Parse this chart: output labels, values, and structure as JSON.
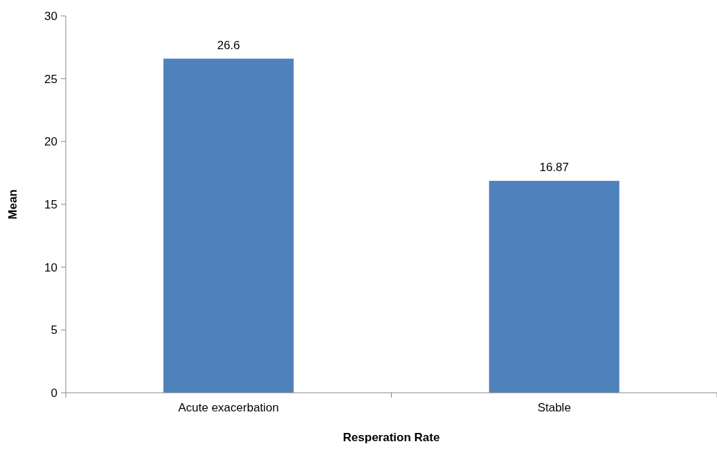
{
  "chart_data": {
    "type": "bar",
    "xlabel": "Resperation Rate",
    "ylabel": "Mean",
    "categories": [
      "Acute exacerbation",
      "Stable"
    ],
    "values": [
      26.6,
      16.87
    ],
    "color": "#4f81bd",
    "ylim": [
      0,
      30
    ],
    "yticks": [
      0,
      5,
      10,
      15,
      20,
      25,
      30
    ],
    "grid": false,
    "data_labels": true
  }
}
